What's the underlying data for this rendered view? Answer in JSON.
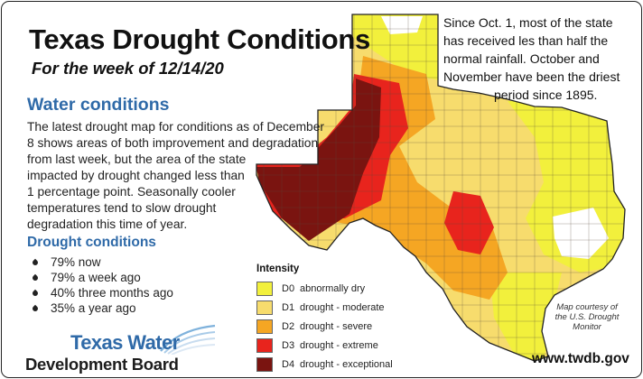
{
  "header": {
    "title": "Texas Drought Conditions",
    "subtitle": "For the week of 12/14/20"
  },
  "note": {
    "lines": [
      "Since Oct. 1, most of the state",
      "has received les than half the",
      "normal rainfall. October and",
      "November have been the driest",
      "period since 1895."
    ]
  },
  "water_conditions": {
    "heading": "Water conditions",
    "lines": [
      "The latest drought map for conditions as of December",
      "8 shows areas of both improvement and degradation",
      "from last week, but the area of the state",
      "impacted by drought changed less than",
      "1 percentage point. Seasonally cooler",
      "temperatures tend to slow drought",
      "degradation this time of year."
    ]
  },
  "drought_conditions": {
    "heading": "Drought conditions",
    "stats": [
      {
        "percent": 79,
        "text": "79% now"
      },
      {
        "percent": 79,
        "text": "79% a week ago"
      },
      {
        "percent": 40,
        "text": "40% three months ago"
      },
      {
        "percent": 35,
        "text": "35% a year ago"
      }
    ]
  },
  "legend": {
    "title": "Intensity",
    "items": [
      {
        "code": "D0",
        "label": "abnormally dry",
        "color": "#f2f03c"
      },
      {
        "code": "D1",
        "label": "drought - moderate",
        "color": "#f7dc6d"
      },
      {
        "code": "D2",
        "label": "drought - severe",
        "color": "#f5a623"
      },
      {
        "code": "D3",
        "label": "drought - extreme",
        "color": "#e8241d"
      },
      {
        "code": "D4",
        "label": "drought - exceptional",
        "color": "#7a1410"
      }
    ]
  },
  "logo": {
    "line1": "Texas Water",
    "line2": "Development Board",
    "accent_color": "#2f6aa8"
  },
  "credit": {
    "lines": [
      "Map courtesy of",
      "the U.S. Drought",
      "Monitor"
    ]
  },
  "website": "www.twdb.gov",
  "colors": {
    "none": "#ffffff",
    "D0": "#f2f03c",
    "D1": "#f7dc6d",
    "D2": "#f5a623",
    "D3": "#e8241d",
    "D4": "#7a1410",
    "heading_blue": "#2f6aa8"
  }
}
